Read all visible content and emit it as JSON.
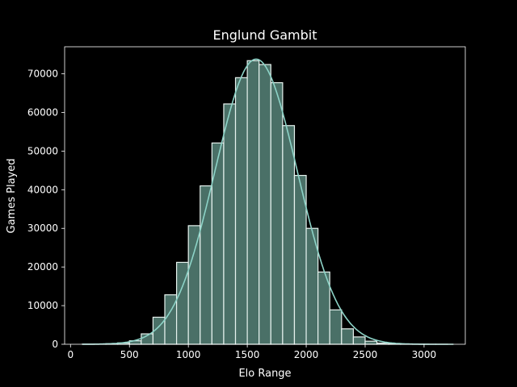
{
  "chart_data": {
    "type": "bar",
    "subtype": "histogram-with-kde",
    "title": "Englund Gambit",
    "xlabel": "Elo Range",
    "ylabel": "Games Played",
    "xlim": [
      -50,
      3350
    ],
    "ylim": [
      0,
      77000
    ],
    "xticks": [
      0,
      500,
      1000,
      1500,
      2000,
      2500,
      3000
    ],
    "yticks": [
      0,
      10000,
      20000,
      30000,
      40000,
      50000,
      60000,
      70000
    ],
    "grid": false,
    "legend": "none",
    "bin_width": 100,
    "bins": [
      {
        "x": 100,
        "value": 30
      },
      {
        "x": 200,
        "value": 60
      },
      {
        "x": 300,
        "value": 150
      },
      {
        "x": 400,
        "value": 350
      },
      {
        "x": 500,
        "value": 900
      },
      {
        "x": 600,
        "value": 2700
      },
      {
        "x": 700,
        "value": 7000
      },
      {
        "x": 800,
        "value": 12800
      },
      {
        "x": 900,
        "value": 21200
      },
      {
        "x": 1000,
        "value": 30700
      },
      {
        "x": 1100,
        "value": 41000
      },
      {
        "x": 1200,
        "value": 52100
      },
      {
        "x": 1300,
        "value": 62200
      },
      {
        "x": 1400,
        "value": 69000
      },
      {
        "x": 1500,
        "value": 73400
      },
      {
        "x": 1600,
        "value": 72400
      },
      {
        "x": 1700,
        "value": 67700
      },
      {
        "x": 1800,
        "value": 56600
      },
      {
        "x": 1900,
        "value": 43700
      },
      {
        "x": 2000,
        "value": 30000
      },
      {
        "x": 2100,
        "value": 18700
      },
      {
        "x": 2200,
        "value": 8900
      },
      {
        "x": 2300,
        "value": 4000
      },
      {
        "x": 2400,
        "value": 1900
      },
      {
        "x": 2500,
        "value": 800
      },
      {
        "x": 2600,
        "value": 300
      },
      {
        "x": 2700,
        "value": 120
      },
      {
        "x": 2800,
        "value": 60
      },
      {
        "x": 2900,
        "value": 30
      },
      {
        "x": 3000,
        "value": 15
      },
      {
        "x": 3100,
        "value": 8
      }
    ],
    "kde": {
      "peak_x": 1575,
      "peak_y": 73800,
      "sigma": 350
    }
  },
  "colors": {
    "background": "#000000",
    "bar_fill": "#4a7067",
    "bar_edge": "#e6f2ee",
    "kde_line": "#8dd3c7",
    "text": "#ffffff"
  }
}
